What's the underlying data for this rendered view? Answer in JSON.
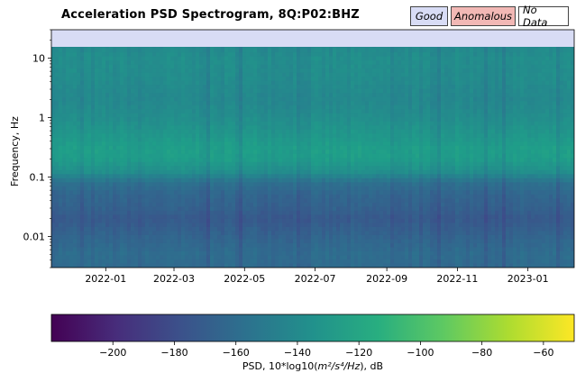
{
  "chart_data": {
    "type": "heatmap",
    "title": "Acceleration PSD Spectrogram, 8Q:P02:BHZ",
    "ylabel": "Frequency, Hz",
    "y_scale": "log",
    "yticks": [
      {
        "value": 10,
        "label": "10"
      },
      {
        "value": 1,
        "label": "1"
      },
      {
        "value": 0.1,
        "label": "0.1"
      },
      {
        "value": 0.01,
        "label": "0.01"
      }
    ],
    "ylim": [
      0.003,
      30
    ],
    "data_freq_range": [
      0.003,
      20
    ],
    "xlim": [
      "2021-11-15",
      "2023-02-10"
    ],
    "xticks": [
      {
        "value": "2022-01-01",
        "label": "2022-01"
      },
      {
        "value": "2022-03-01",
        "label": "2022-03"
      },
      {
        "value": "2022-05-01",
        "label": "2022-05"
      },
      {
        "value": "2022-07-01",
        "label": "2022-07"
      },
      {
        "value": "2022-09-01",
        "label": "2022-09"
      },
      {
        "value": "2022-11-01",
        "label": "2022-11"
      },
      {
        "value": "2023-01-01",
        "label": "2023-01"
      }
    ],
    "psd_profile_db": [
      {
        "freq": 20,
        "psd": -142
      },
      {
        "freq": 10,
        "psd": -137
      },
      {
        "freq": 5,
        "psd": -138
      },
      {
        "freq": 2,
        "psd": -141
      },
      {
        "freq": 1,
        "psd": -137
      },
      {
        "freq": 0.5,
        "psd": -131
      },
      {
        "freq": 0.3,
        "psd": -126
      },
      {
        "freq": 0.2,
        "psd": -127
      },
      {
        "freq": 0.12,
        "psd": -137
      },
      {
        "freq": 0.08,
        "psd": -158
      },
      {
        "freq": 0.05,
        "psd": -165
      },
      {
        "freq": 0.03,
        "psd": -168
      },
      {
        "freq": 0.02,
        "psd": -173
      },
      {
        "freq": 0.01,
        "psd": -166
      },
      {
        "freq": 0.005,
        "psd": -160
      },
      {
        "freq": 0.003,
        "psd": -162
      }
    ],
    "quality_strip": {
      "status": "Good",
      "color": "#d8dcf5"
    },
    "legend": [
      {
        "label": "Good",
        "color": "#d8dcf5"
      },
      {
        "label": "Anomalous",
        "color": "#f2b8b5"
      },
      {
        "label": "No Data",
        "color": "#ffffff"
      }
    ],
    "colorbar": {
      "colormap": "viridis",
      "range": [
        -220,
        -50
      ],
      "ticks": [
        {
          "value": -200,
          "label": "−200"
        },
        {
          "value": -180,
          "label": "−180"
        },
        {
          "value": -160,
          "label": "−160"
        },
        {
          "value": -140,
          "label": "−140"
        },
        {
          "value": -120,
          "label": "−120"
        },
        {
          "value": -100,
          "label": "−100"
        },
        {
          "value": -80,
          "label": "−80"
        },
        {
          "value": -60,
          "label": "−60"
        }
      ],
      "label_prefix": "PSD, 10*log10(",
      "label_units": "m²/s⁴/Hz",
      "label_suffix": "), dB"
    }
  }
}
